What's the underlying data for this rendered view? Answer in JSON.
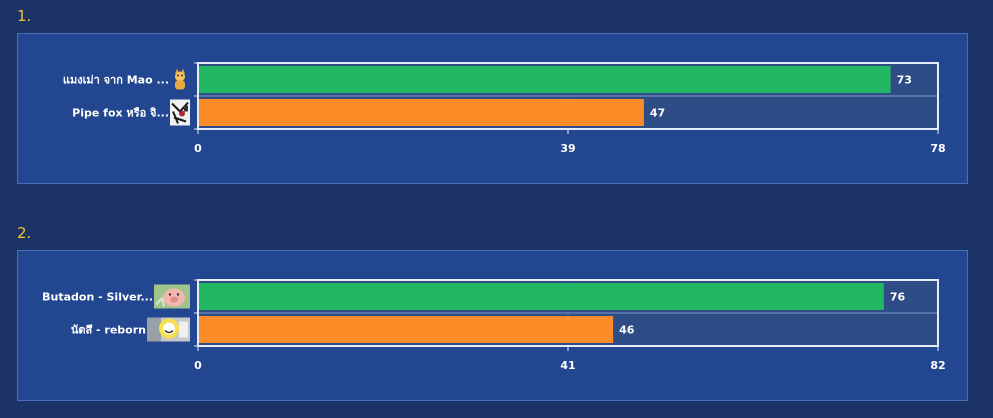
{
  "sections": [
    {
      "number": "1."
    },
    {
      "number": "2."
    }
  ],
  "colors": {
    "background": "#1b3366",
    "panel": "#22468f",
    "track": "#2e4c86",
    "bar_first": "#22b863",
    "bar_second": "#fb8c28",
    "frame": "#e6ecf7"
  },
  "chart_data": [
    {
      "type": "bar",
      "orientation": "horizontal",
      "categories": [
        "แมงเม่า จาก Mao ...",
        "Pipe fox หรือ จิ..."
      ],
      "values": [
        73,
        47
      ],
      "icons": [
        "cat-avatar-icon",
        "fox-avatar-icon"
      ],
      "xlim": [
        0,
        78
      ],
      "ticks": [
        "0",
        "39",
        "78"
      ]
    },
    {
      "type": "bar",
      "orientation": "horizontal",
      "categories": [
        "Butadon - Silver...",
        "นัตสึ - reborn"
      ],
      "values": [
        76,
        46
      ],
      "icons": [
        "pig-avatar-icon",
        "cat-face-avatar-icon"
      ],
      "xlim": [
        0,
        82
      ],
      "ticks": [
        "0",
        "41",
        "82"
      ]
    }
  ]
}
